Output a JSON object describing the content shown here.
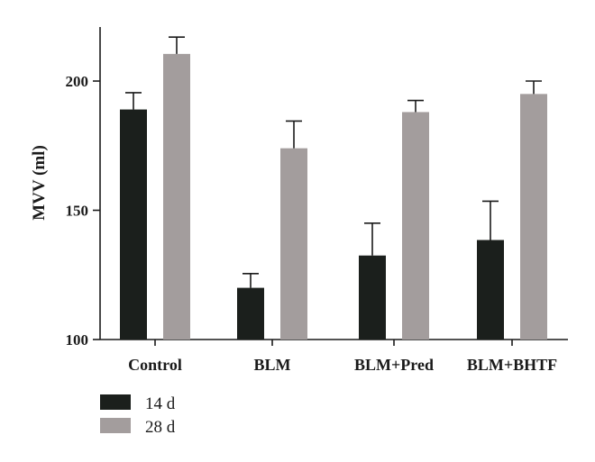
{
  "chart_data": {
    "type": "bar",
    "categories": [
      "Control",
      "BLM",
      "BLM+Pred",
      "BLM+BHTF"
    ],
    "ylabel": "MVV (ml)",
    "xlabel": "",
    "ylim": [
      100,
      220
    ],
    "yticks": [
      100,
      150,
      200
    ],
    "grid": false,
    "legend_position": "bottom-left",
    "series": [
      {
        "name": "14 d",
        "color": "#1b1f1c",
        "values": [
          189,
          120,
          132.5,
          138.5
        ],
        "errors": [
          6.5,
          5.5,
          12.5,
          15
        ]
      },
      {
        "name": "28 d",
        "color": "#a39d9d",
        "values": [
          210.5,
          174,
          188,
          195
        ],
        "errors": [
          6.5,
          10.5,
          4.5,
          5
        ]
      }
    ]
  }
}
